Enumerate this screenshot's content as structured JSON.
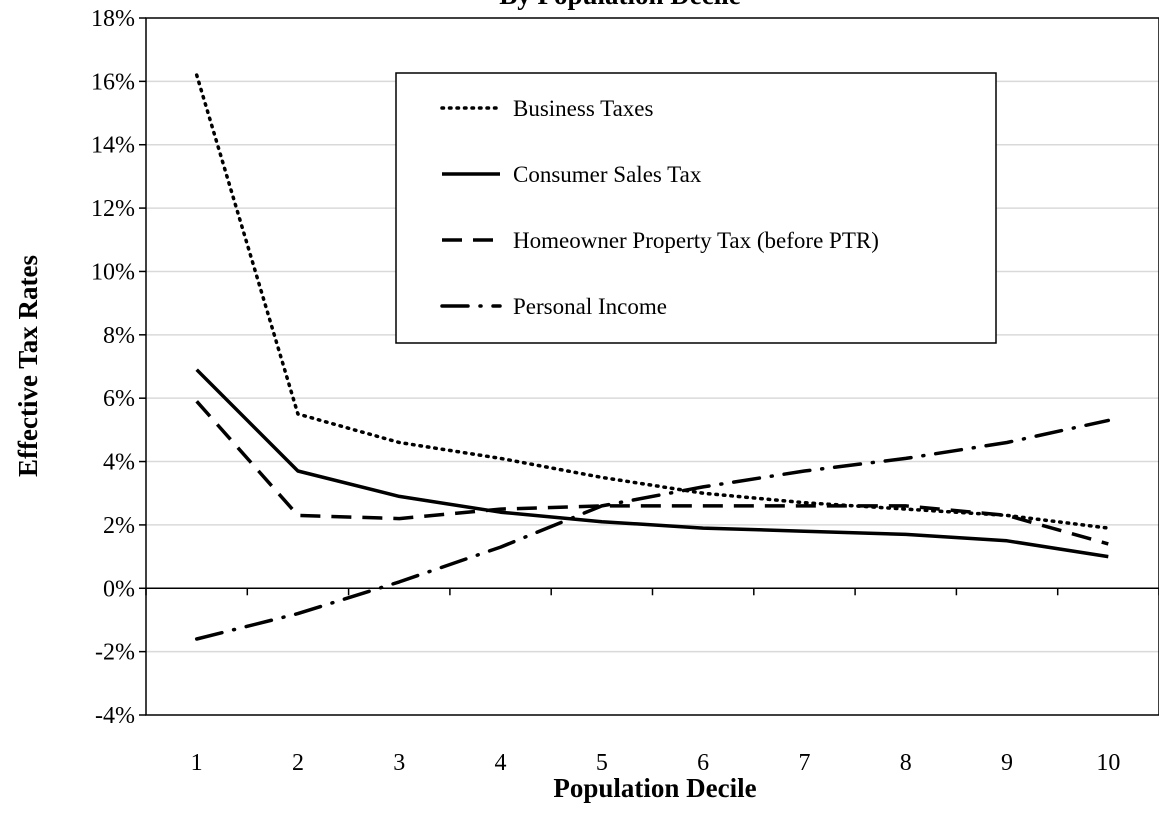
{
  "chart_data": {
    "type": "line",
    "title": "By Population Decile",
    "xlabel": "Population Decile",
    "ylabel": "Effective Tax Rates",
    "x": [
      1,
      2,
      3,
      4,
      5,
      6,
      7,
      8,
      9,
      10
    ],
    "x_tick_labels": [
      "1",
      "2",
      "3",
      "4",
      "5",
      "6",
      "7",
      "8",
      "9",
      "10"
    ],
    "y_tick_labels": [
      "-4%",
      "-2%",
      "0%",
      "2%",
      "4%",
      "6%",
      "8%",
      "10%",
      "12%",
      "14%",
      "16%",
      "18%"
    ],
    "ylim": [
      -4,
      18
    ],
    "y_unit": "%",
    "grid": "horizontal",
    "legend_position": "top-center",
    "series": [
      {
        "name": "Business Taxes",
        "style": "dotted",
        "color": "#000000",
        "values": [
          16.2,
          5.5,
          4.6,
          4.1,
          3.5,
          3.0,
          2.7,
          2.5,
          2.3,
          1.9
        ]
      },
      {
        "name": "Consumer Sales Tax",
        "style": "solid",
        "color": "#000000",
        "values": [
          6.9,
          3.7,
          2.9,
          2.4,
          2.1,
          1.9,
          1.8,
          1.7,
          1.5,
          1.0
        ]
      },
      {
        "name": "Homeowner Property Tax (before PTR)",
        "style": "dashed",
        "color": "#000000",
        "values": [
          5.9,
          2.3,
          2.2,
          2.5,
          2.6,
          2.6,
          2.6,
          2.6,
          2.3,
          1.4
        ]
      },
      {
        "name": "Personal Income",
        "style": "dashdot",
        "color": "#000000",
        "values": [
          -1.6,
          -0.8,
          0.2,
          1.3,
          2.6,
          3.2,
          3.7,
          4.1,
          4.6,
          5.3
        ]
      }
    ]
  }
}
